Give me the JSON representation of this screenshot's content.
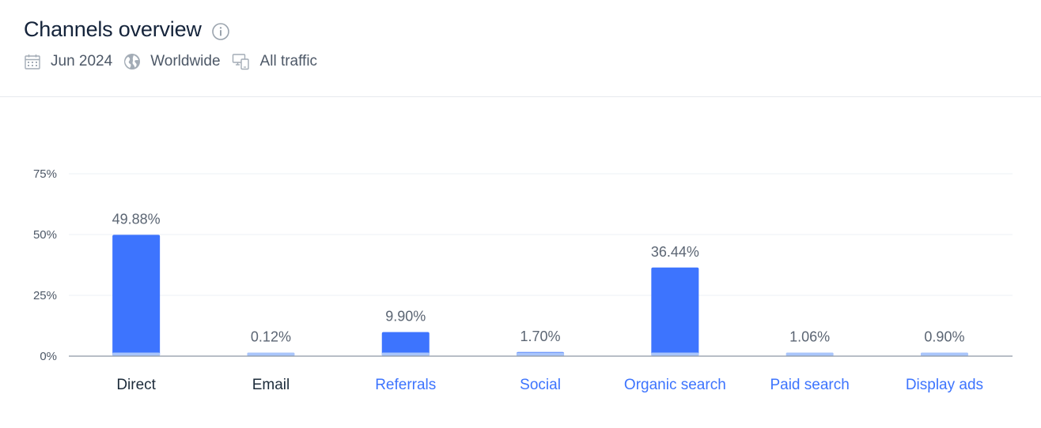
{
  "header": {
    "title": "Channels overview",
    "date": "Jun 2024",
    "region": "Worldwide",
    "traffic": "All traffic"
  },
  "icons": {
    "info": "info-icon",
    "date": "calendar-icon",
    "region": "globe-icon",
    "traffic": "devices-icon"
  },
  "colors": {
    "bar": "#3d74fe",
    "bar_base": "#a9c5fb",
    "link": "#3d74fe",
    "axis_text": "#4d5867",
    "category_text": "#1c2b3a"
  },
  "chart_data": {
    "type": "bar",
    "categories": [
      "Direct",
      "Email",
      "Referrals",
      "Social",
      "Organic search",
      "Paid search",
      "Display ads"
    ],
    "values": [
      49.88,
      0.12,
      9.9,
      1.7,
      36.44,
      1.06,
      0.9
    ],
    "value_labels": [
      "49.88%",
      "0.12%",
      "9.90%",
      "1.70%",
      "36.44%",
      "1.06%",
      "0.90%"
    ],
    "category_links": [
      false,
      false,
      true,
      true,
      true,
      true,
      true
    ],
    "yticks": [
      0,
      25,
      50,
      75
    ],
    "ytick_labels": [
      "0%",
      "25%",
      "50%",
      "75%"
    ],
    "ylim": [
      0,
      75
    ],
    "grid": true,
    "title": "",
    "xlabel": "",
    "ylabel": ""
  }
}
